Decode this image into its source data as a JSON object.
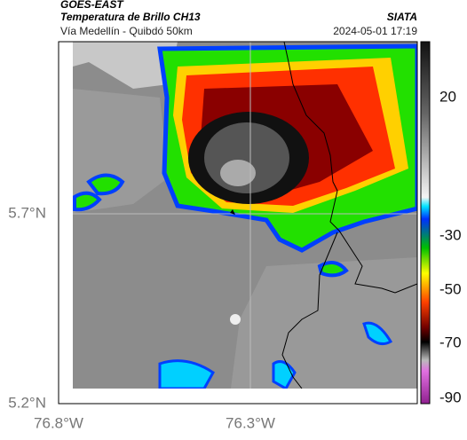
{
  "header": {
    "title": "GOES-EAST",
    "subtitle": "Temperatura de Brillo CH13",
    "location": "Vía Medellín - Quibdó 50km",
    "source": "SIATA",
    "datetime": "2024-05-01 17:19"
  },
  "map": {
    "xticks": [
      "76.8°W",
      "76.3°W"
    ],
    "yticks": [
      "5.7°N",
      "5.2°N"
    ]
  },
  "colorbar": {
    "ticks": [
      "20",
      "-30",
      "-50",
      "-70",
      "-90"
    ]
  }
}
